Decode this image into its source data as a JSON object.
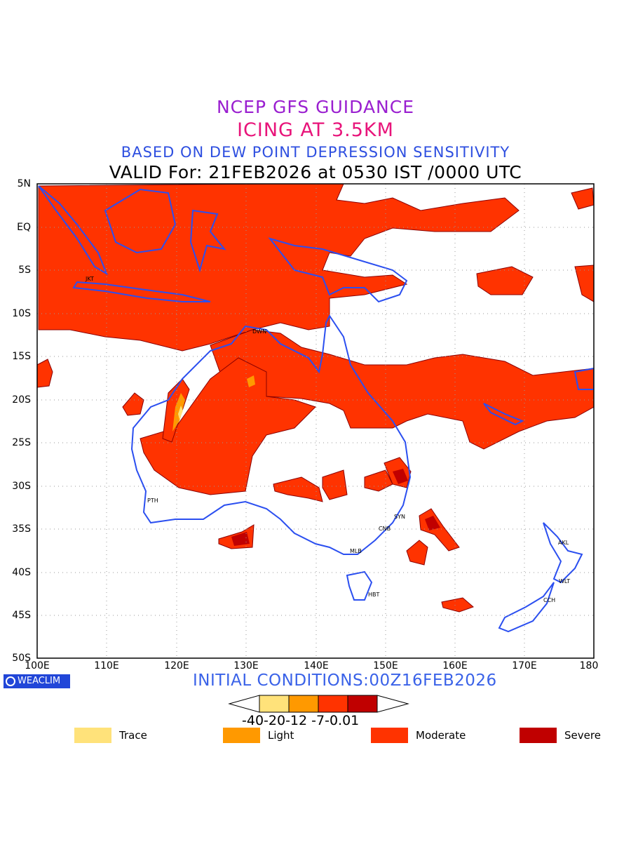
{
  "titles": {
    "line1": "NCEP GFS GUIDANCE",
    "line2": "ICING AT 3.5KM",
    "line3": "BASED ON DEW POINT DEPRESSION SENSITIVITY",
    "line4": "VALID For: 21FEB2026 at 0530 IST /0000 UTC"
  },
  "axes": {
    "lat_labels": [
      "5N",
      "EQ",
      "5S",
      "10S",
      "15S",
      "20S",
      "25S",
      "30S",
      "35S",
      "40S",
      "45S",
      "50S"
    ],
    "lon_labels": [
      "100E",
      "110E",
      "120E",
      "130E",
      "140E",
      "150E",
      "160E",
      "170E",
      "180"
    ]
  },
  "cities": [
    {
      "code": "JKT"
    },
    {
      "code": "DWN"
    },
    {
      "code": "PTH"
    },
    {
      "code": "SYN"
    },
    {
      "code": "CNB"
    },
    {
      "code": "MLB"
    },
    {
      "code": "HBT"
    },
    {
      "code": "AKL"
    },
    {
      "code": "WLT"
    },
    {
      "code": "CCH"
    }
  ],
  "footer": {
    "logo_text": "WEACLIM",
    "initial_conditions": "INITIAL CONDITIONS:00Z16FEB2026"
  },
  "colorbar": {
    "labels_text": "-40-20-12 -7-0.01",
    "colors": [
      "#ffe27a",
      "#ff9900",
      "#ff3300",
      "#c00000"
    ]
  },
  "legend": [
    {
      "label": "Trace",
      "color": "#ffe27a"
    },
    {
      "label": "Light",
      "color": "#ff9900"
    },
    {
      "label": "Moderate",
      "color": "#ff3300"
    },
    {
      "label": "Severe",
      "color": "#c00000"
    }
  ]
}
